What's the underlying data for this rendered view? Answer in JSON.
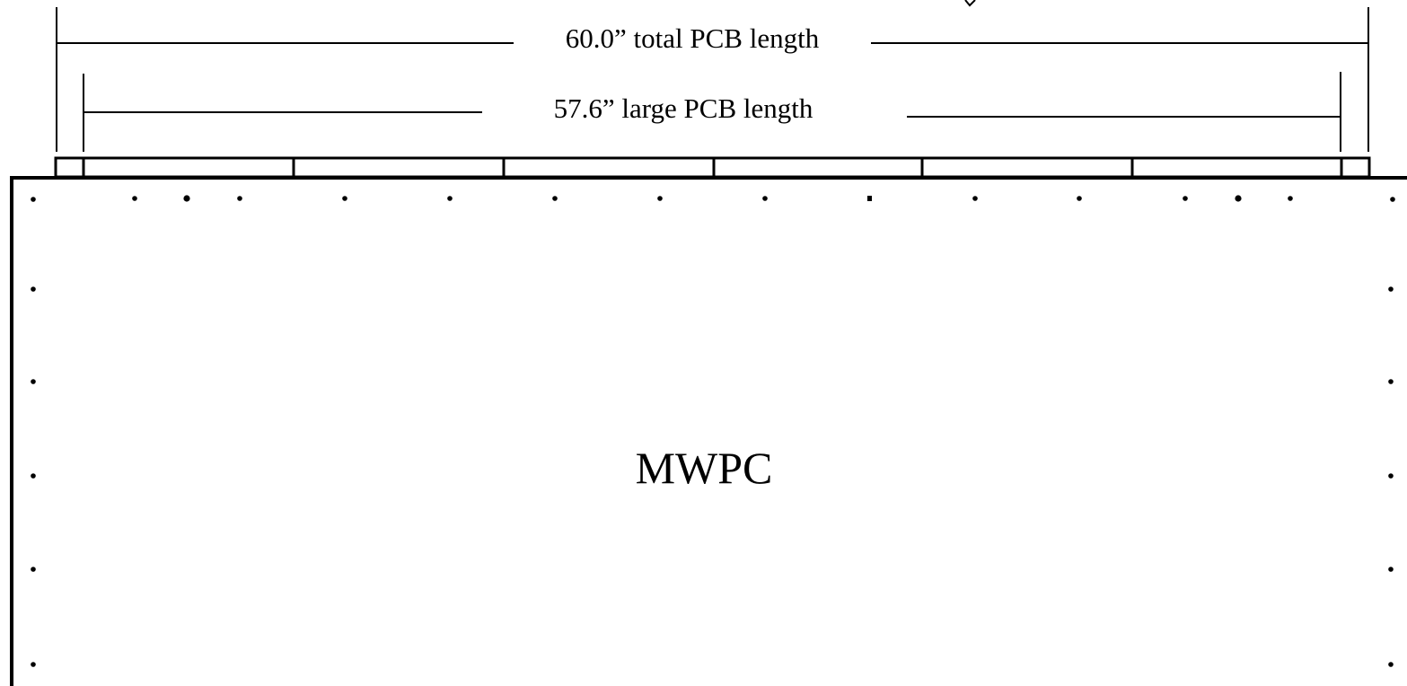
{
  "dimensions": {
    "total_label": "60.0” total PCB length",
    "large_label": "57.6” large PCB length"
  },
  "chamber": {
    "label": "MWPC"
  },
  "pcb_strip": {
    "small_board_count": 2,
    "large_board_count": 6
  }
}
